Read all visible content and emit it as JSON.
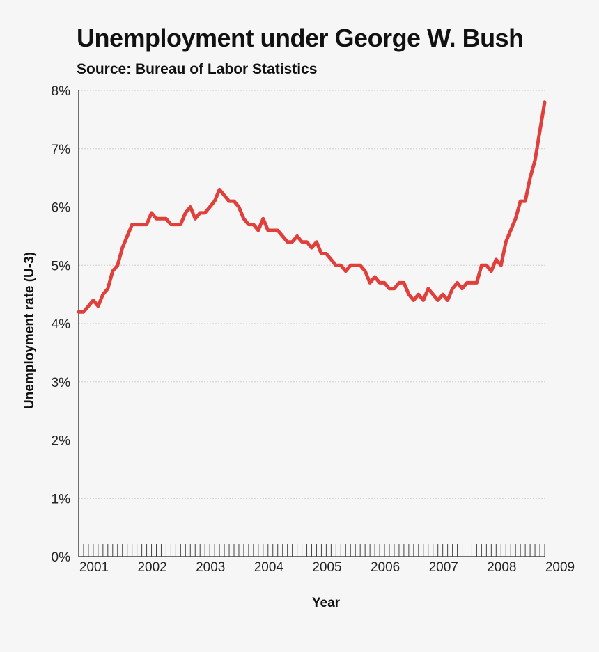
{
  "chart_data": {
    "type": "line",
    "title": "Unemployment under George W. Bush",
    "subtitle": "Source: Bureau of Labor Statistics",
    "xlabel": "Year",
    "ylabel": "Unemployment rate (U-3)",
    "ylim": [
      0,
      8
    ],
    "xlim": [
      2001,
      2009
    ],
    "y_ticks": [
      "0%",
      "1%",
      "2%",
      "3%",
      "4%",
      "5%",
      "6%",
      "7%",
      "8%"
    ],
    "x_ticks": [
      "2001",
      "2002",
      "2003",
      "2004",
      "2005",
      "2006",
      "2007",
      "2008",
      "2009"
    ],
    "grid": true,
    "line_color": "#e0403c",
    "series": [
      {
        "x_start": "2001-01",
        "frequency": "monthly",
        "values": [
          4.2,
          4.2,
          4.3,
          4.4,
          4.3,
          4.5,
          4.6,
          4.9,
          5.0,
          5.3,
          5.5,
          5.7,
          5.7,
          5.7,
          5.7,
          5.9,
          5.8,
          5.8,
          5.8,
          5.7,
          5.7,
          5.7,
          5.9,
          6.0,
          5.8,
          5.9,
          5.9,
          6.0,
          6.1,
          6.3,
          6.2,
          6.1,
          6.1,
          6.0,
          5.8,
          5.7,
          5.7,
          5.6,
          5.8,
          5.6,
          5.6,
          5.6,
          5.5,
          5.4,
          5.4,
          5.5,
          5.4,
          5.4,
          5.3,
          5.4,
          5.2,
          5.2,
          5.1,
          5.0,
          5.0,
          4.9,
          5.0,
          5.0,
          5.0,
          4.9,
          4.7,
          4.8,
          4.7,
          4.7,
          4.6,
          4.6,
          4.7,
          4.7,
          4.5,
          4.4,
          4.5,
          4.4,
          4.6,
          4.5,
          4.4,
          4.5,
          4.4,
          4.6,
          4.7,
          4.6,
          4.7,
          4.7,
          4.7,
          5.0,
          5.0,
          4.9,
          5.1,
          5.0,
          5.4,
          5.6,
          5.8,
          6.1,
          6.1,
          6.5,
          6.8,
          7.3,
          7.8
        ]
      }
    ]
  }
}
